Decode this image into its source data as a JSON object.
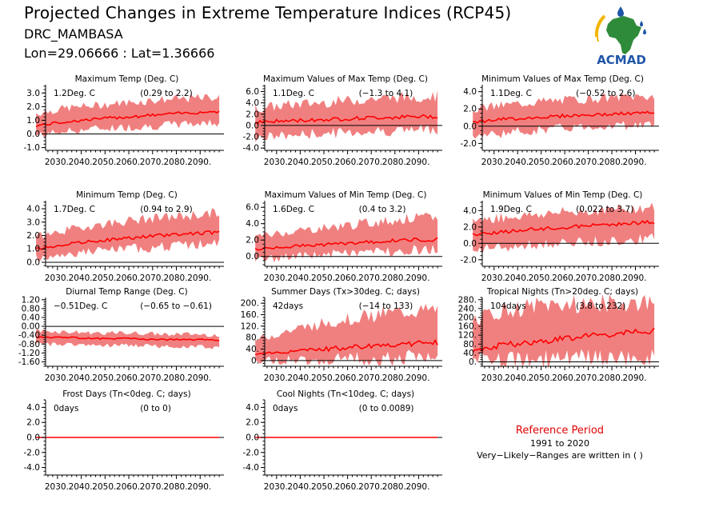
{
  "header": {
    "title": "Projected Changes in Extreme Temperature Indices (RCP45)",
    "station": "DRC_MAMBASA",
    "coords": "Lon=29.06666 : Lat=1.36666"
  },
  "logo": {
    "text": "ACMAD",
    "icon": "africa-map-logo"
  },
  "reference": {
    "title": "Reference Period",
    "years": "1991 to 2020",
    "note": "Very−Likely−Ranges are written in ( )"
  },
  "colors": {
    "band": "#f08080",
    "median": "#ff0000",
    "zero_line": "#000000",
    "logo_blue": "#1f56a8",
    "logo_green": "#2e8b3a",
    "logo_yellow": "#f2b500"
  },
  "chart_data": [
    {
      "type": "area",
      "title": "Maximum Temp (Deg. C)",
      "summary": "1.2Deg. C",
      "range": "(0.29 to 2.2)",
      "x_ticks": [
        "2030.",
        "2040.",
        "2050.",
        "2060.",
        "2070.",
        "2080.",
        "2090."
      ],
      "xlim": [
        2025,
        2100
      ],
      "y_ticks": [
        "-1.0",
        "0.0",
        "1.0",
        "2.0",
        "3.0"
      ],
      "ylim": [
        -1.2,
        3.6
      ],
      "series": [
        {
          "values_median": [
            0.6,
            0.9,
            1.1,
            1.25,
            1.4,
            1.55,
            1.65
          ]
        },
        {
          "values_lower": [
            -0.1,
            0.2,
            0.4,
            0.5,
            0.6,
            0.75,
            0.85
          ]
        },
        {
          "values_upper": [
            1.5,
            1.9,
            2.1,
            2.3,
            2.5,
            2.6,
            2.7
          ]
        }
      ]
    },
    {
      "type": "area",
      "title": "Maximum Values of Max Temp (Deg. C)",
      "summary": "1.1Deg. C",
      "range": "(−1.3 to 4.1)",
      "x_ticks": [
        "2030.",
        "2040.",
        "2050.",
        "2060.",
        "2070.",
        "2080.",
        "2090."
      ],
      "xlim": [
        2025,
        2100
      ],
      "y_ticks": [
        "-4.0",
        "-2.0",
        "0.0",
        "2.0",
        "4.0",
        "6.0"
      ],
      "ylim": [
        -4.4,
        7.2
      ],
      "series": [
        {
          "values_median": [
            0.6,
            0.8,
            1.0,
            1.2,
            1.4,
            1.5,
            1.6
          ]
        },
        {
          "values_lower": [
            -2.2,
            -1.8,
            -1.5,
            -1.2,
            -1.0,
            -0.8,
            -0.6
          ]
        },
        {
          "values_upper": [
            3.0,
            3.6,
            4.0,
            4.4,
            4.8,
            5.0,
            5.2
          ]
        }
      ]
    },
    {
      "type": "area",
      "title": "Minimum Values of Max Temp (Deg. C)",
      "summary": "1.1Deg. C",
      "range": "(−0.52 to 2.6)",
      "x_ticks": [
        "2030.",
        "2040.",
        "2050.",
        "2060.",
        "2070.",
        "2080.",
        "2090."
      ],
      "xlim": [
        2025,
        2100
      ],
      "y_ticks": [
        "-2.0",
        "0.0",
        "2.0",
        "4.0"
      ],
      "ylim": [
        -2.8,
        4.8
      ],
      "series": [
        {
          "values_median": [
            0.5,
            0.8,
            1.0,
            1.2,
            1.3,
            1.45,
            1.55
          ]
        },
        {
          "values_lower": [
            -1.2,
            -0.8,
            -0.5,
            -0.2,
            0.0,
            0.1,
            0.2
          ]
        },
        {
          "values_upper": [
            2.0,
            2.4,
            2.8,
            3.0,
            3.2,
            3.4,
            3.5
          ]
        }
      ]
    },
    {
      "type": "area",
      "title": "Minimum Temp (Deg. C)",
      "summary": "1.7Deg. C",
      "range": "(0.94 to 2.9)",
      "x_ticks": [
        "2030.",
        "2040.",
        "2050.",
        "2060.",
        "2070.",
        "2080.",
        "2090."
      ],
      "xlim": [
        2025,
        2100
      ],
      "y_ticks": [
        "0.0",
        "1.0",
        "2.0",
        "3.0",
        "4.0"
      ],
      "ylim": [
        -0.3,
        4.6
      ],
      "series": [
        {
          "values_median": [
            1.0,
            1.35,
            1.6,
            1.8,
            2.0,
            2.15,
            2.25
          ]
        },
        {
          "values_lower": [
            0.3,
            0.6,
            0.85,
            1.0,
            1.15,
            1.3,
            1.4
          ]
        },
        {
          "values_upper": [
            1.9,
            2.4,
            2.8,
            3.1,
            3.3,
            3.5,
            3.7
          ]
        }
      ]
    },
    {
      "type": "area",
      "title": "Maximum Values of Min Temp (Deg. C)",
      "summary": "1.6Deg. C",
      "range": "(0.4 to 3.2)",
      "x_ticks": [
        "2030.",
        "2040.",
        "2050.",
        "2060.",
        "2070.",
        "2080.",
        "2090."
      ],
      "xlim": [
        2025,
        2100
      ],
      "y_ticks": [
        "0.0",
        "2.0",
        "4.0",
        "6.0"
      ],
      "ylim": [
        -1.2,
        6.8
      ],
      "series": [
        {
          "values_median": [
            0.9,
            1.2,
            1.4,
            1.6,
            1.8,
            2.0,
            2.1
          ]
        },
        {
          "values_lower": [
            -0.4,
            -0.1,
            0.2,
            0.4,
            0.6,
            0.8,
            0.9
          ]
        },
        {
          "values_upper": [
            2.4,
            3.0,
            3.4,
            3.8,
            4.2,
            4.6,
            4.8
          ]
        }
      ]
    },
    {
      "type": "area",
      "title": "Minimum Values of Min Temp (Deg. C)",
      "summary": "1.9Deg. C",
      "range": "(0.022 to 3.7)",
      "x_ticks": [
        "2030.",
        "2040.",
        "2050.",
        "2060.",
        "2070.",
        "2080.",
        "2090."
      ],
      "xlim": [
        2025,
        2100
      ],
      "y_ticks": [
        "-2.0",
        "0.0",
        "2.0",
        "4.0"
      ],
      "ylim": [
        -2.8,
        5.2
      ],
      "series": [
        {
          "values_median": [
            1.1,
            1.4,
            1.7,
            1.9,
            2.2,
            2.4,
            2.6
          ]
        },
        {
          "values_lower": [
            -0.8,
            -0.5,
            -0.2,
            0.0,
            0.2,
            0.4,
            0.6
          ]
        },
        {
          "values_upper": [
            2.8,
            3.2,
            3.5,
            3.8,
            4.0,
            4.2,
            4.4
          ]
        }
      ]
    },
    {
      "type": "area",
      "title": "Diurnal Temp Range (Deg. C)",
      "summary": "−0.51Deg. C",
      "range": "(−0.65 to −0.61)",
      "x_ticks": [
        "2030.",
        "2040.",
        "2050.",
        "2060.",
        "2070.",
        "2080.",
        "2090."
      ],
      "xlim": [
        2025,
        2100
      ],
      "y_ticks": [
        "-1.60",
        "-1.20",
        "-0.80",
        "-0.40",
        "0.00",
        "0.40",
        "0.80",
        "1.20"
      ],
      "ylim": [
        -1.8,
        1.3
      ],
      "series": [
        {
          "values_median": [
            -0.5,
            -0.5,
            -0.55,
            -0.55,
            -0.6,
            -0.6,
            -0.62
          ]
        },
        {
          "values_lower": [
            -0.8,
            -0.8,
            -0.85,
            -0.85,
            -0.9,
            -0.9,
            -0.95
          ]
        },
        {
          "values_upper": [
            -0.2,
            -0.25,
            -0.3,
            -0.3,
            -0.35,
            -0.35,
            -0.4
          ]
        }
      ]
    },
    {
      "type": "area",
      "title": "Summer Days (Tx>30deg. C; days)",
      "summary": "42days",
      "range": "(−14 to 133)",
      "x_ticks": [
        "2030.",
        "2040.",
        "2050.",
        "2060.",
        "2070.",
        "2080.",
        "2090."
      ],
      "xlim": [
        2025,
        2100
      ],
      "y_ticks": [
        "0.",
        "40.",
        "80.",
        "120.",
        "160.",
        "200."
      ],
      "ylim": [
        -20,
        220
      ],
      "series": [
        {
          "values_median": [
            22,
            30,
            38,
            45,
            52,
            58,
            62
          ]
        },
        {
          "values_lower": [
            0,
            2,
            4,
            6,
            8,
            10,
            12
          ]
        },
        {
          "values_upper": [
            70,
            100,
            125,
            145,
            160,
            170,
            175
          ]
        }
      ]
    },
    {
      "type": "area",
      "title": "Tropical Nights (Tn>20deg. C; days)",
      "summary": "104days",
      "range": "(3.8 to 232)",
      "x_ticks": [
        "2030.",
        "2040.",
        "2050.",
        "2060.",
        "2070.",
        "2080.",
        "2090."
      ],
      "xlim": [
        2025,
        2100
      ],
      "y_ticks": [
        "0.",
        "40.",
        "80.",
        "120.",
        "160.",
        "200.",
        "240.",
        "280."
      ],
      "ylim": [
        -20,
        290
      ],
      "series": [
        {
          "values_median": [
            55,
            75,
            90,
            105,
            118,
            128,
            138
          ]
        },
        {
          "values_lower": [
            5,
            8,
            10,
            12,
            14,
            16,
            18
          ]
        },
        {
          "values_upper": [
            190,
            230,
            250,
            260,
            262,
            265,
            265
          ]
        }
      ]
    },
    {
      "type": "area",
      "title": "Frost Days (Tn<0deg. C; days)",
      "summary": "0days",
      "range": "(0 to 0)",
      "x_ticks": [
        "2030.",
        "2040.",
        "2050.",
        "2060.",
        "2070.",
        "2080.",
        "2090."
      ],
      "xlim": [
        2025,
        2100
      ],
      "y_ticks": [
        "-4.0",
        "-2.0",
        "0.0",
        "2.0",
        "4.0"
      ],
      "ylim": [
        -5.0,
        5.0
      ],
      "series": [
        {
          "values_median": [
            0,
            0,
            0,
            0,
            0,
            0,
            0
          ]
        },
        {
          "values_lower": [
            0,
            0,
            0,
            0,
            0,
            0,
            0
          ]
        },
        {
          "values_upper": [
            0,
            0,
            0,
            0,
            0,
            0,
            0
          ]
        }
      ]
    },
    {
      "type": "area",
      "title": "Cool Nights (Tn<10deg. C; days)",
      "summary": "0days",
      "range": "(0 to 0.0089)",
      "x_ticks": [
        "2030.",
        "2040.",
        "2050.",
        "2060.",
        "2070.",
        "2080.",
        "2090."
      ],
      "xlim": [
        2025,
        2100
      ],
      "y_ticks": [
        "-4.0",
        "-2.0",
        "0.0",
        "2.0",
        "4.0"
      ],
      "ylim": [
        -5.0,
        5.0
      ],
      "series": [
        {
          "values_median": [
            0,
            0,
            0,
            0,
            0,
            0,
            0
          ]
        },
        {
          "values_lower": [
            0,
            0,
            0,
            0,
            0,
            0,
            0
          ]
        },
        {
          "values_upper": [
            0,
            0,
            0,
            0,
            0,
            0,
            0
          ]
        }
      ]
    }
  ]
}
